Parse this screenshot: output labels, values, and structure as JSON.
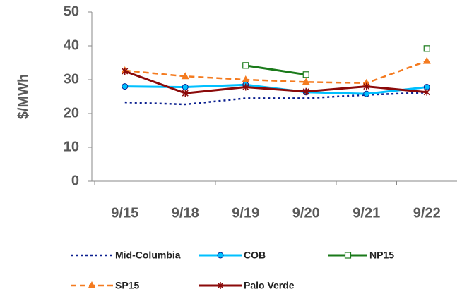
{
  "chart_data": {
    "type": "line",
    "y_label": "$/MWh",
    "categories": [
      "9/15",
      "9/18",
      "9/19",
      "9/20",
      "9/21",
      "9/22"
    ],
    "ylim": [
      0,
      50
    ],
    "yticks": [
      0,
      10,
      20,
      30,
      40,
      50
    ],
    "grid": false,
    "series": [
      {
        "name": "Mid-Columbia",
        "color": "#0a1f8f",
        "dash": "dotted",
        "marker": "none",
        "values": [
          23.3,
          22.7,
          24.5,
          24.5,
          25.5,
          26.2
        ]
      },
      {
        "name": "COB",
        "color": "#00c0ff",
        "dash": "solid",
        "marker": "circle",
        "values": [
          28,
          27.8,
          28.5,
          26.3,
          25.8,
          27.8
        ]
      },
      {
        "name": "NP15",
        "color": "#1a7a1a",
        "dash": "solid",
        "marker": "square",
        "values": [
          null,
          null,
          34.2,
          31.5,
          null,
          39.2
        ]
      },
      {
        "name": "SP15",
        "color": "#f47b20",
        "dash": "dashed",
        "marker": "triangle",
        "values": [
          32.7,
          31,
          30,
          29.3,
          29,
          35.5
        ]
      },
      {
        "name": "Palo Verde",
        "color": "#8b0a0a",
        "dash": "solid",
        "marker": "star",
        "values": [
          32.5,
          26,
          27.8,
          26.5,
          28,
          26.3
        ]
      }
    ]
  }
}
